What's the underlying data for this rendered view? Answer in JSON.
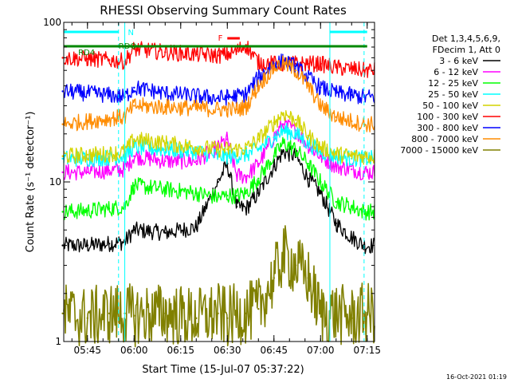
{
  "chart_data": {
    "type": "line",
    "title": "RHESSI Observing Summary Count Rates",
    "xlabel": "Start Time (15-Jul-07 05:37:22)",
    "ylabel": "Count Rate (s⁻¹ detector⁻¹)",
    "yscale": "log",
    "ylim": [
      1,
      100
    ],
    "xlim": [
      "05:37:22",
      "07:17:22"
    ],
    "x_ticks": [
      "05:45",
      "06:00",
      "06:15",
      "06:30",
      "06:45",
      "07:00",
      "07:15"
    ],
    "y_ticks": [
      "1",
      "10",
      "100"
    ],
    "legend_header": [
      "Det 1,3,4,5,6,9,",
      "FDecim 1, Att 0"
    ],
    "legend_placement": "right",
    "timestamp": "16-Oct-2021 01:19",
    "annotations": {
      "flare": "F",
      "night": "N",
      "saa": "RD4",
      "decimation": "RDO"
    },
    "series": [
      {
        "name": "3 - 6 keV",
        "color": "#000000",
        "t": [
          "05:37",
          "05:45",
          "05:52",
          "05:57",
          "06:00",
          "06:10",
          "06:20",
          "06:27",
          "06:30",
          "06:33",
          "06:36",
          "06:40",
          "06:45",
          "06:48",
          "06:52",
          "06:56",
          "07:00",
          "07:05",
          "07:10",
          "07:14"
        ],
        "values": [
          4.0,
          4.0,
          4.1,
          4.2,
          5.0,
          4.8,
          5.2,
          10.0,
          13.0,
          7.0,
          6.8,
          8.5,
          12.5,
          15.5,
          14.5,
          10.5,
          8.5,
          5.5,
          4.5,
          4.0
        ]
      },
      {
        "name": "6 - 12 keV",
        "color": "#ff00ff",
        "t": [
          "05:37",
          "05:45",
          "05:52",
          "05:57",
          "06:00",
          "06:10",
          "06:20",
          "06:27",
          "06:30",
          "06:33",
          "06:36",
          "06:40",
          "06:45",
          "06:48",
          "06:52",
          "06:56",
          "07:00",
          "07:05",
          "07:10",
          "07:14"
        ],
        "values": [
          11.5,
          11.5,
          11.8,
          12.0,
          14.5,
          13.5,
          13.5,
          16.5,
          18.5,
          11.0,
          10.8,
          13.0,
          19.0,
          23.0,
          21.0,
          17.0,
          14.5,
          12.5,
          12.0,
          11.5
        ]
      },
      {
        "name": "12 - 25 keV",
        "color": "#00ff00",
        "t": [
          "05:37",
          "05:45",
          "05:52",
          "05:57",
          "06:00",
          "06:10",
          "06:20",
          "06:27",
          "06:30",
          "06:33",
          "06:36",
          "06:40",
          "06:45",
          "06:48",
          "06:52",
          "06:56",
          "07:00",
          "07:05",
          "07:10",
          "07:14"
        ],
        "values": [
          6.5,
          6.6,
          6.8,
          7.0,
          9.5,
          9.0,
          8.5,
          8.0,
          8.2,
          8.2,
          8.5,
          10.5,
          14.5,
          17.5,
          16.0,
          13.0,
          10.0,
          7.5,
          7.0,
          6.5
        ]
      },
      {
        "name": "25 - 50 keV",
        "color": "#00ffff",
        "t": [
          "05:37",
          "05:45",
          "05:52",
          "05:57",
          "06:00",
          "06:10",
          "06:20",
          "06:27",
          "06:30",
          "06:33",
          "06:36",
          "06:40",
          "06:45",
          "06:48",
          "06:52",
          "06:56",
          "07:00",
          "07:05",
          "07:10",
          "07:14"
        ],
        "values": [
          14.0,
          14.0,
          14.2,
          14.5,
          16.5,
          16.0,
          15.5,
          14.5,
          14.5,
          14.5,
          14.8,
          16.0,
          19.0,
          21.0,
          20.0,
          17.5,
          15.5,
          14.5,
          14.0,
          14.0
        ]
      },
      {
        "name": "50 - 100 keV",
        "color": "#d4d400",
        "t": [
          "05:37",
          "05:45",
          "05:52",
          "05:57",
          "06:00",
          "06:10",
          "06:20",
          "06:27",
          "06:30",
          "06:33",
          "06:36",
          "06:40",
          "06:45",
          "06:48",
          "06:52",
          "06:56",
          "07:00",
          "07:05",
          "07:10",
          "07:14"
        ],
        "values": [
          14.5,
          14.8,
          15.0,
          15.5,
          18.5,
          17.5,
          16.5,
          16.0,
          16.0,
          16.0,
          16.2,
          18.5,
          23.5,
          27.0,
          24.5,
          19.5,
          16.5,
          15.0,
          14.5,
          14.5
        ]
      },
      {
        "name": "100 - 300 keV",
        "color": "#ff0000",
        "t": [
          "05:37",
          "05:45",
          "05:52",
          "05:57",
          "06:00",
          "06:10",
          "06:20",
          "06:27",
          "06:30",
          "06:33",
          "06:36",
          "06:40",
          "06:45",
          "06:48",
          "06:52",
          "06:56",
          "07:00",
          "07:05",
          "07:10",
          "07:14"
        ],
        "values": [
          60.0,
          59.0,
          58.0,
          57.0,
          68.0,
          65.0,
          63.0,
          62.0,
          63.0,
          66.0,
          72.0,
          56.0,
          55.0,
          55.0,
          55.0,
          55.0,
          55.0,
          52.0,
          51.0,
          50.0
        ]
      },
      {
        "name": "300 - 800 keV",
        "color": "#0000ff",
        "t": [
          "05:37",
          "05:45",
          "05:52",
          "05:57",
          "06:00",
          "06:10",
          "06:20",
          "06:27",
          "06:30",
          "06:33",
          "06:36",
          "06:40",
          "06:45",
          "06:48",
          "06:52",
          "06:56",
          "07:00",
          "07:05",
          "07:10",
          "07:14"
        ],
        "values": [
          37.0,
          36.0,
          35.0,
          34.0,
          39.0,
          36.0,
          34.5,
          33.5,
          34.0,
          34.5,
          35.5,
          45.0,
          55.0,
          57.0,
          53.0,
          45.0,
          39.0,
          36.0,
          35.0,
          34.0
        ]
      },
      {
        "name": "800 - 7000 keV",
        "color": "#ff8c00",
        "t": [
          "05:37",
          "05:45",
          "05:52",
          "05:57",
          "06:00",
          "06:10",
          "06:20",
          "06:27",
          "06:30",
          "06:33",
          "06:36",
          "06:40",
          "06:45",
          "06:48",
          "06:52",
          "06:56",
          "07:00",
          "07:05",
          "07:10",
          "07:14"
        ],
        "values": [
          23.0,
          24.0,
          25.0,
          25.5,
          30.0,
          29.5,
          29.0,
          28.5,
          28.5,
          28.5,
          29.5,
          40.0,
          52.0,
          55.0,
          50.0,
          40.0,
          30.0,
          25.5,
          24.0,
          23.0
        ]
      },
      {
        "name": "7000 - 15000 keV",
        "color": "#808000",
        "t": [
          "05:37",
          "05:45",
          "05:52",
          "05:57",
          "06:00",
          "06:10",
          "06:20",
          "06:27",
          "06:30",
          "06:33",
          "06:36",
          "06:40",
          "06:45",
          "06:48",
          "06:52",
          "06:56",
          "07:00",
          "07:05",
          "07:10",
          "07:14"
        ],
        "values": [
          1.5,
          1.4,
          1.5,
          1.5,
          1.45,
          1.5,
          1.4,
          1.5,
          1.4,
          1.5,
          1.5,
          1.6,
          2.5,
          3.5,
          3.0,
          2.5,
          1.5,
          1.5,
          1.4,
          1.5
        ]
      }
    ]
  }
}
